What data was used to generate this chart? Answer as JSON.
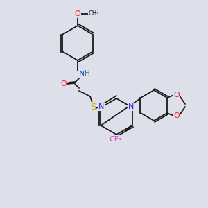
{
  "bg_color": "#dde0ea",
  "bond_color": "#1a1a1a",
  "colors": {
    "N": "#2222dd",
    "O": "#ee2222",
    "S": "#ccaa00",
    "F": "#cc44cc",
    "H": "#228888",
    "C": "#1a1a1a"
  },
  "lw": 1.3,
  "fs": 7.5
}
